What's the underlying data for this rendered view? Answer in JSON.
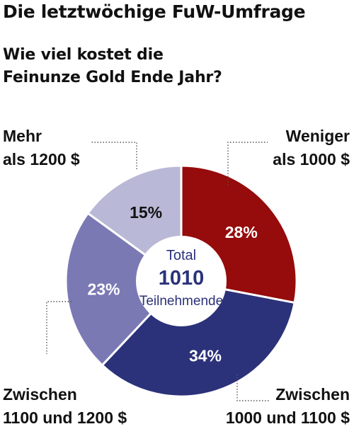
{
  "header": {
    "title": "Die letztwöchige FuW-Umfrage",
    "subtitle_line1": "Wie viel kostet die",
    "subtitle_line2": "Feinunze Gold Ende Jahr?"
  },
  "center": {
    "top": "Total",
    "value": "1010",
    "bottom": "Teilnehmende"
  },
  "colors": {
    "slice_weniger": "#960b0b",
    "slice_1000_1100": "#2b327a",
    "slice_1100_1200": "#7b79b4",
    "slice_mehr": "#b9b8d6",
    "center_text": "#2b327a",
    "label_text": "#111111"
  },
  "chart_data": {
    "type": "pie",
    "title": "Die letztwöchige FuW-Umfrage",
    "subtitle": "Wie viel kostet die Feinunze Gold Ende Jahr?",
    "total": 1010,
    "slices": [
      {
        "id": "weniger",
        "label_lines": [
          "Weniger",
          "als 1000 $"
        ],
        "value": 28,
        "value_label": "28%",
        "color": "#960b0b"
      },
      {
        "id": "1000-1100",
        "label_lines": [
          "Zwischen",
          "1000 und 1100 $"
        ],
        "value": 34,
        "value_label": "34%",
        "color": "#2b327a"
      },
      {
        "id": "1100-1200",
        "label_lines": [
          "Zwischen",
          "1100 und 1200 $"
        ],
        "value": 23,
        "value_label": "23%",
        "color": "#7b79b4"
      },
      {
        "id": "mehr",
        "label_lines": [
          "Mehr",
          "als 1200 $"
        ],
        "value": 15,
        "value_label": "15%",
        "color": "#b9b8d6"
      }
    ]
  }
}
